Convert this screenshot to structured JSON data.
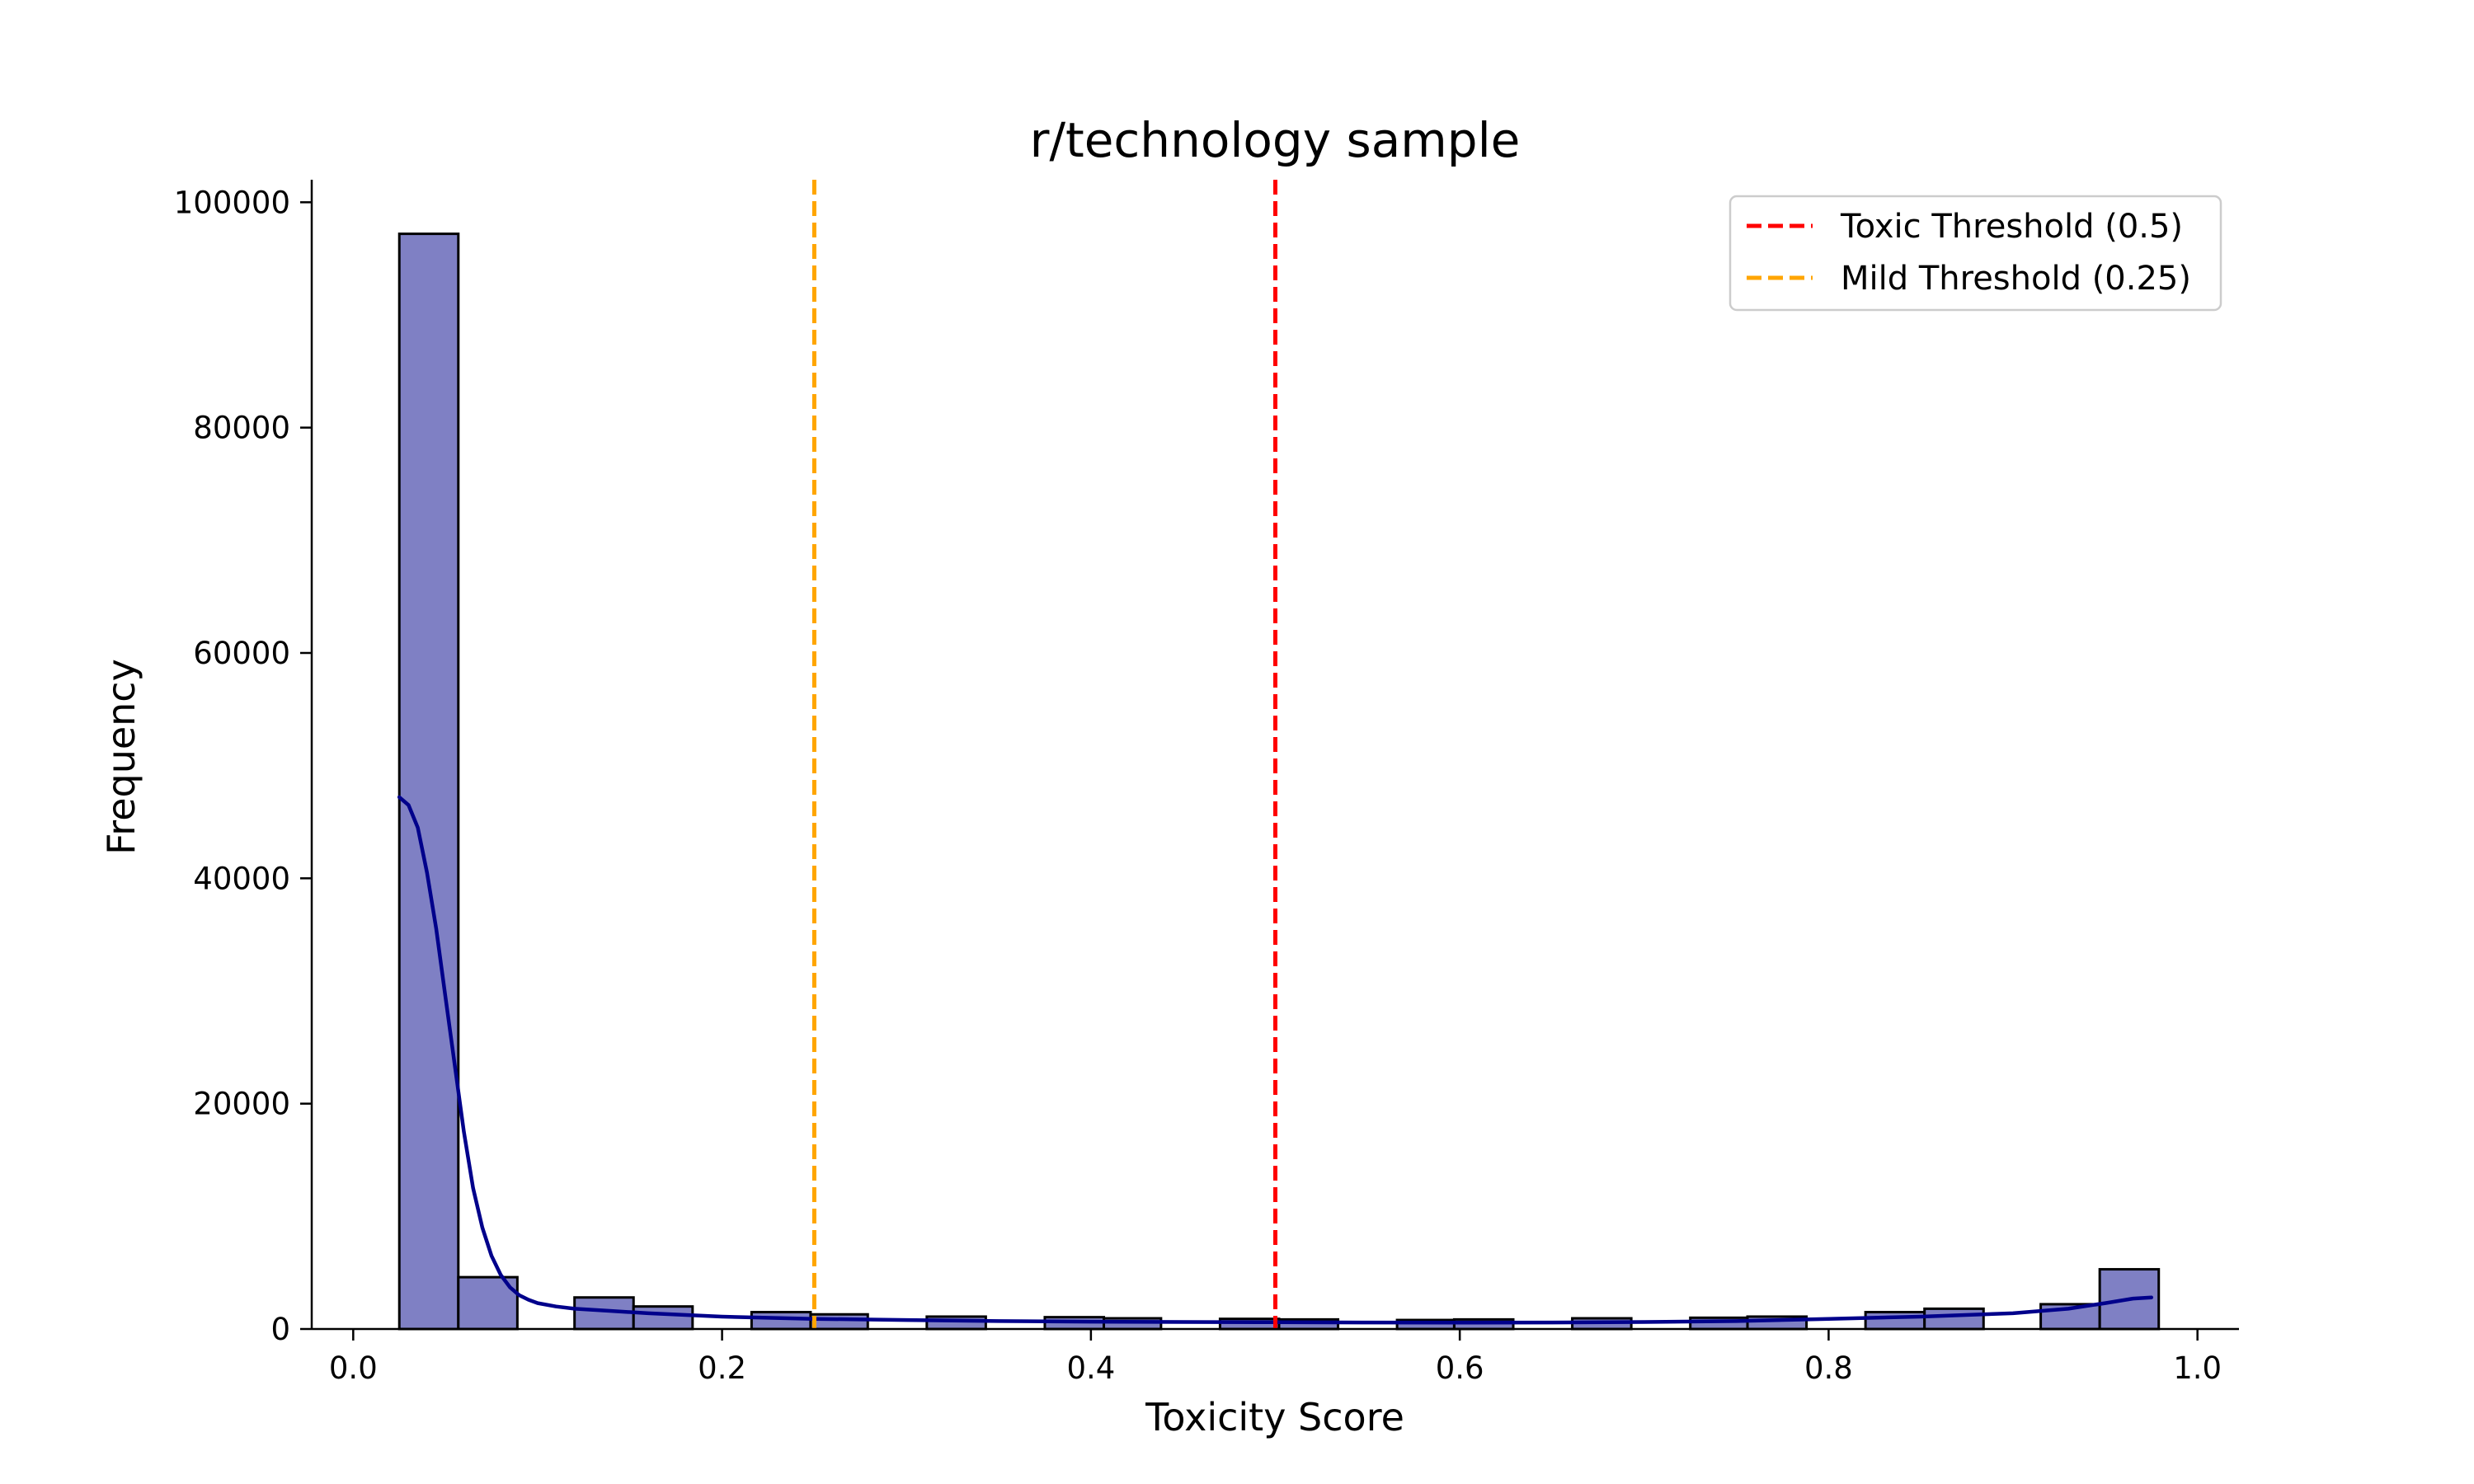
{
  "chart_data": {
    "type": "bar",
    "title": "r/technology sample",
    "xlabel": "Toxicity Score",
    "ylabel": "Frequency",
    "xlim": [
      -0.0225,
      1.0225
    ],
    "ylim": [
      0,
      102000
    ],
    "xticks": [
      0.0,
      0.2,
      0.4,
      0.6,
      0.8,
      1.0
    ],
    "xtick_labels": [
      "0.0",
      "0.2",
      "0.4",
      "0.6",
      "0.8",
      "1.0"
    ],
    "yticks": [
      0,
      20000,
      40000,
      60000,
      80000,
      100000
    ],
    "ytick_labels": [
      "0",
      "20000",
      "40000",
      "60000",
      "80000",
      "100000"
    ],
    "bar_color": "#7f80c4",
    "bar_edge_color": "#000000",
    "kde_color": "#00008b",
    "bins": [
      {
        "x0": 0.025,
        "x1": 0.057,
        "value": 97200
      },
      {
        "x0": 0.057,
        "x1": 0.089,
        "value": 4600
      },
      {
        "x0": 0.089,
        "x1": 0.12,
        "value": 0
      },
      {
        "x0": 0.12,
        "x1": 0.152,
        "value": 2800
      },
      {
        "x0": 0.152,
        "x1": 0.184,
        "value": 2000
      },
      {
        "x0": 0.184,
        "x1": 0.216,
        "value": 0
      },
      {
        "x0": 0.216,
        "x1": 0.248,
        "value": 1500
      },
      {
        "x0": 0.248,
        "x1": 0.279,
        "value": 1300
      },
      {
        "x0": 0.279,
        "x1": 0.311,
        "value": 0
      },
      {
        "x0": 0.311,
        "x1": 0.343,
        "value": 1100
      },
      {
        "x0": 0.343,
        "x1": 0.375,
        "value": 0
      },
      {
        "x0": 0.375,
        "x1": 0.407,
        "value": 1050
      },
      {
        "x0": 0.407,
        "x1": 0.438,
        "value": 950
      },
      {
        "x0": 0.438,
        "x1": 0.47,
        "value": 0
      },
      {
        "x0": 0.47,
        "x1": 0.502,
        "value": 900
      },
      {
        "x0": 0.502,
        "x1": 0.534,
        "value": 850
      },
      {
        "x0": 0.534,
        "x1": 0.566,
        "value": 0
      },
      {
        "x0": 0.566,
        "x1": 0.597,
        "value": 800
      },
      {
        "x0": 0.597,
        "x1": 0.629,
        "value": 850
      },
      {
        "x0": 0.629,
        "x1": 0.661,
        "value": 0
      },
      {
        "x0": 0.661,
        "x1": 0.693,
        "value": 950
      },
      {
        "x0": 0.693,
        "x1": 0.725,
        "value": 0
      },
      {
        "x0": 0.725,
        "x1": 0.756,
        "value": 1000
      },
      {
        "x0": 0.756,
        "x1": 0.788,
        "value": 1100
      },
      {
        "x0": 0.788,
        "x1": 0.82,
        "value": 0
      },
      {
        "x0": 0.82,
        "x1": 0.852,
        "value": 1500
      },
      {
        "x0": 0.852,
        "x1": 0.884,
        "value": 1800
      },
      {
        "x0": 0.884,
        "x1": 0.915,
        "value": 0
      },
      {
        "x0": 0.915,
        "x1": 0.947,
        "value": 2200
      },
      {
        "x0": 0.947,
        "x1": 0.979,
        "value": 5300
      }
    ],
    "kde": {
      "x": [
        0.025,
        0.03,
        0.035,
        0.04,
        0.045,
        0.05,
        0.055,
        0.06,
        0.065,
        0.07,
        0.075,
        0.08,
        0.085,
        0.09,
        0.095,
        0.1,
        0.11,
        0.12,
        0.14,
        0.16,
        0.2,
        0.25,
        0.3,
        0.35,
        0.4,
        0.45,
        0.5,
        0.55,
        0.6,
        0.65,
        0.7,
        0.75,
        0.8,
        0.85,
        0.9,
        0.93,
        0.95,
        0.965,
        0.975
      ],
      "y": [
        47200,
        46500,
        44500,
        40500,
        35500,
        29500,
        23500,
        17500,
        12500,
        9000,
        6500,
        4800,
        3700,
        3000,
        2600,
        2300,
        2000,
        1800,
        1600,
        1400,
        1100,
        900,
        800,
        700,
        650,
        620,
        600,
        580,
        570,
        580,
        620,
        700,
        900,
        1100,
        1400,
        1800,
        2300,
        2700,
        2800
      ]
    },
    "thresholds": [
      {
        "name": "Toxic Threshold (0.5)",
        "value": 0.5,
        "color": "#ff0000"
      },
      {
        "name": "Mild Threshold (0.25)",
        "value": 0.25,
        "color": "#ffa500"
      }
    ],
    "legend_position": "top-right",
    "grid": false
  }
}
